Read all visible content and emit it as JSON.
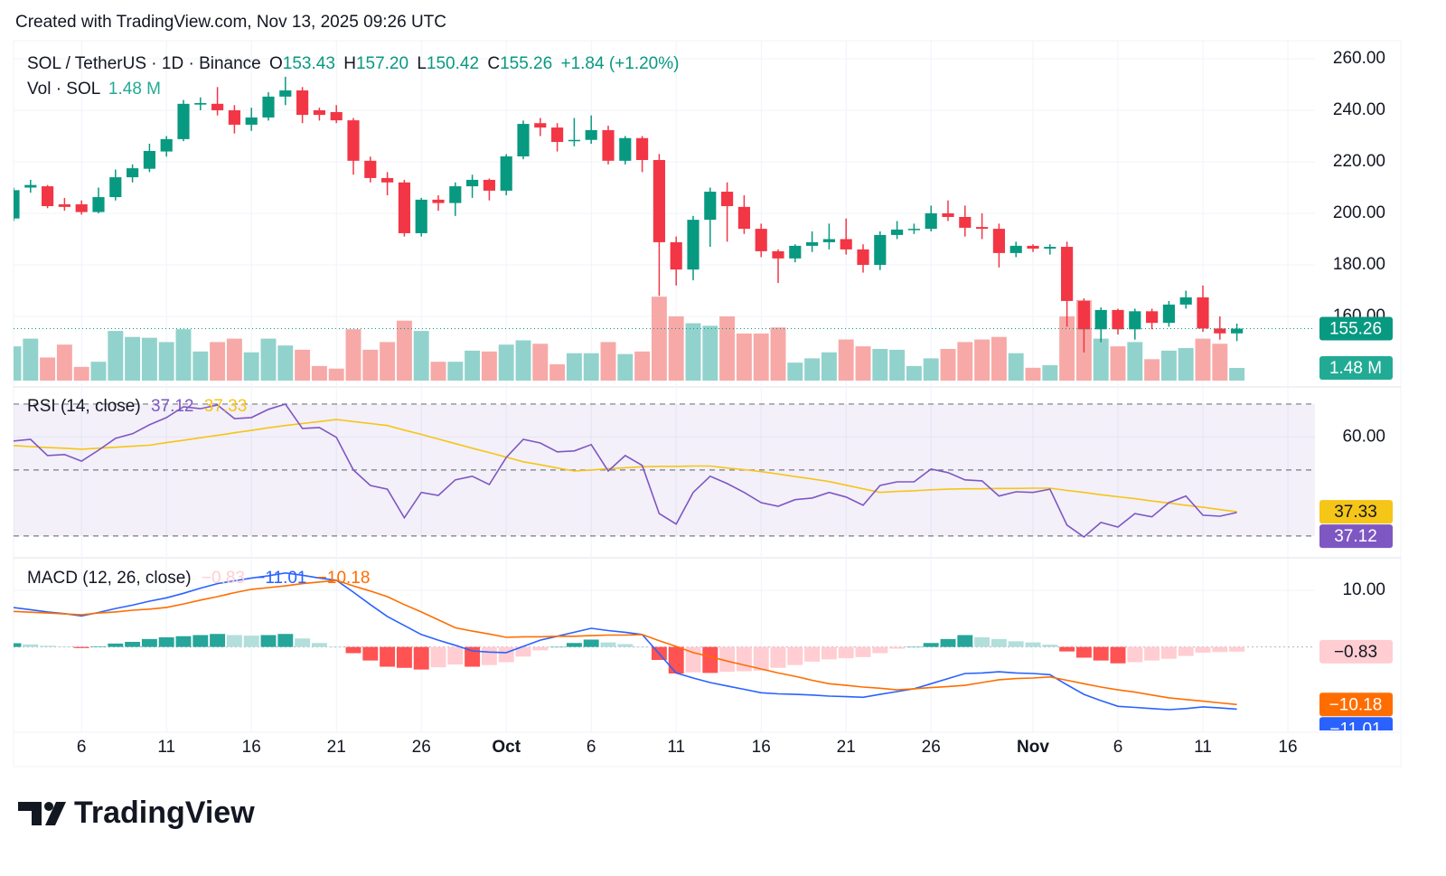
{
  "header": {
    "created": "Created with TradingView.com, Nov 13, 2025 09:26 UTC",
    "logo": "TradingView"
  },
  "chart_data": [
    {
      "type": "candlestick",
      "title": "SOL / TetherUS · 1D · Binance",
      "legend": {
        "open_label": "O",
        "open": "153.43",
        "high_label": "H",
        "high": "157.20",
        "low_label": "L",
        "low": "150.42",
        "close_label": "C",
        "close": "155.26",
        "change": "+1.84 (+1.20%)",
        "volume_title": "Vol · SOL",
        "volume": "1.48 M"
      },
      "categories": [
        null,
        null,
        null,
        null,
        "6",
        null,
        null,
        null,
        null,
        "11",
        null,
        null,
        null,
        null,
        "16",
        null,
        null,
        null,
        null,
        "21",
        null,
        null,
        null,
        null,
        "26",
        null,
        null,
        null,
        null,
        "Oct",
        null,
        null,
        null,
        null,
        "6",
        null,
        null,
        null,
        null,
        "11",
        null,
        null,
        null,
        null,
        "16",
        null,
        null,
        null,
        null,
        "21",
        null,
        null,
        null,
        null,
        "26",
        null,
        null,
        null,
        null,
        null,
        "Nov",
        null,
        null,
        null,
        null,
        "6",
        null,
        null,
        null,
        null,
        "11",
        null,
        null,
        null,
        null,
        "16"
      ],
      "open": [
        198,
        210,
        210.5,
        203.5,
        203.5,
        200.5,
        206.3,
        214,
        217.3,
        224,
        228.8,
        242.2,
        242.5,
        240,
        234.4,
        237.2,
        245.3,
        247.7,
        240,
        239.3,
        236.1,
        220.4,
        213.7,
        212,
        192.3,
        205.3,
        204,
        210.5,
        213,
        208.8,
        222.1,
        235,
        233.3,
        228,
        228.5,
        232.3,
        220.4,
        229.2,
        220.7,
        188.8,
        178.2,
        197.5,
        208.4,
        202.5,
        194,
        185.3,
        182.5,
        187.4,
        188.8,
        190,
        186,
        180,
        191.6,
        193.7,
        194,
        200,
        198.6,
        194.7,
        194,
        184.6,
        187.4,
        186.3,
        187,
        166,
        155,
        162.5,
        155,
        162,
        157.5,
        164.6,
        167.4,
        155.3,
        153.43,
        null,
        null,
        null
      ],
      "high": [
        210,
        213,
        211,
        206,
        205,
        210,
        217,
        219,
        227,
        230,
        244,
        245,
        249,
        242,
        241,
        247,
        253,
        249,
        241,
        242,
        237,
        222,
        216,
        213,
        206,
        207,
        212,
        215,
        213.5,
        223,
        236,
        237,
        235,
        237,
        238,
        234,
        230,
        230,
        223,
        191,
        199,
        210,
        212,
        207,
        196,
        186,
        188,
        193,
        196,
        198,
        188,
        193,
        197,
        196,
        203,
        205,
        203,
        200,
        196,
        189,
        188,
        188,
        189,
        167,
        163.5,
        163,
        163,
        163,
        166,
        170,
        172,
        160,
        157.2,
        null,
        null,
        null
      ],
      "low": [
        197,
        208,
        202,
        201,
        199.5,
        200,
        205,
        212,
        216,
        222,
        228,
        240,
        238,
        231,
        232,
        236,
        242,
        235,
        236,
        235,
        215,
        212,
        207,
        191,
        191,
        201,
        199,
        206,
        205,
        207,
        221,
        230,
        224,
        226,
        227,
        219,
        219,
        216,
        168,
        172,
        174,
        187,
        189,
        192,
        183,
        173,
        181,
        185,
        186,
        184,
        177,
        178,
        190,
        192,
        193,
        197,
        191,
        190,
        179,
        183,
        185,
        184,
        156,
        146,
        150,
        153,
        151,
        155,
        156,
        163,
        154,
        151,
        150.42,
        null,
        null,
        null
      ],
      "close": [
        209,
        211,
        202.8,
        202.5,
        200.5,
        206.3,
        214,
        217.5,
        224.2,
        228.8,
        242.5,
        242.8,
        240,
        234.4,
        237.2,
        245.3,
        247.7,
        238.2,
        238.2,
        236.1,
        220.4,
        213.7,
        212,
        192.3,
        205.3,
        204,
        210.5,
        213,
        208.8,
        222.1,
        234.7,
        233.3,
        227.7,
        228.5,
        232.3,
        220.4,
        229.2,
        220.7,
        188.8,
        178.2,
        197.5,
        208.4,
        202.8,
        194,
        185.3,
        182.5,
        187.4,
        188.8,
        190,
        186,
        180,
        191.6,
        193.7,
        194,
        200,
        198.6,
        194.4,
        194,
        184.6,
        187.4,
        186.3,
        187,
        166,
        155,
        162.5,
        155,
        162,
        157.5,
        164.6,
        167.4,
        155.3,
        153.43,
        155.26,
        null,
        null,
        null
      ],
      "volume": [
        4.0,
        4.9,
        2.7,
        4.2,
        1.6,
        2.2,
        5.8,
        5.1,
        5.0,
        4.5,
        6.0,
        3.4,
        4.5,
        4.9,
        3.3,
        4.9,
        4.1,
        3.6,
        1.7,
        1.4,
        6.0,
        3.6,
        4.5,
        7.0,
        5.8,
        2.2,
        2.2,
        3.5,
        3.4,
        4.2,
        4.7,
        4.3,
        1.9,
        3.2,
        3.2,
        4.5,
        3.1,
        3.4,
        9.8,
        7.5,
        6.7,
        6.4,
        7.5,
        5.5,
        5.5,
        6.2,
        2.1,
        2.6,
        3.3,
        4.8,
        4.0,
        3.7,
        3.6,
        1.7,
        2.6,
        3.7,
        4.5,
        4.8,
        5.1,
        3.2,
        1.5,
        1.8,
        7.5,
        9.4,
        4.9,
        4.0,
        4.5,
        2.5,
        3.5,
        3.8,
        4.9,
        4.3,
        1.48,
        null,
        null,
        null
      ],
      "colors": {
        "up": "#089981",
        "down": "#f23645",
        "volume_up": "#92d2cc",
        "volume_down": "#f7a9a7",
        "volume_tag": "#22ab94"
      },
      "ylim": [
        135.1,
        267.0
      ],
      "volume_ylim": [
        0,
        39.7
      ],
      "yticks": [
        {
          "value": 160,
          "label": "160.00"
        },
        {
          "value": 180,
          "label": "180.00"
        },
        {
          "value": 200,
          "label": "200.00"
        },
        {
          "value": 220,
          "label": "220.00"
        },
        {
          "value": 240,
          "label": "240.00"
        },
        {
          "value": 260,
          "label": "260.00"
        }
      ],
      "grid": true
    },
    {
      "type": "line",
      "title": "RSI (14, close)",
      "series": [
        {
          "color": "#7e57c2",
          "value_label": "37.12",
          "values": [
            58.8,
            59.3,
            54.4,
            54.7,
            52.7,
            56,
            59.6,
            61,
            63.7,
            65.9,
            69.2,
            68.6,
            69.7,
            65.6,
            65.9,
            68.4,
            70,
            62.6,
            62.9,
            59.9,
            50,
            45.3,
            44.2,
            35.5,
            43.2,
            42.3,
            47,
            48.1,
            45.6,
            53.8,
            59.3,
            58.2,
            55.5,
            55.8,
            57.7,
            49.7,
            54.4,
            51.4,
            36.8,
            33.6,
            43.2,
            48.1,
            45.9,
            43.2,
            40.1,
            39,
            41,
            41.5,
            43.2,
            41.8,
            39.3,
            45.3,
            46.4,
            46.4,
            50.3,
            49.2,
            47,
            46.7,
            42.1,
            43.4,
            43.2,
            44.2,
            33.3,
            29.7,
            34.1,
            32.7,
            36.8,
            35.8,
            40.1,
            42.1,
            36.3,
            36,
            37.12,
            null,
            null,
            null
          ]
        },
        {
          "color": "#f5c518",
          "value_label": "37.33",
          "values": [
            57.4,
            57.1,
            56.8,
            56.6,
            56.3,
            56.6,
            56.9,
            57.2,
            57.5,
            58.3,
            59.0,
            59.8,
            60.5,
            61.3,
            62.0,
            62.8,
            63.5,
            64.1,
            64.7,
            65.3,
            64.7,
            64.1,
            63.5,
            62.1,
            60.8,
            59.4,
            58.0,
            56.6,
            55.3,
            53.9,
            52.5,
            51.6,
            50.6,
            49.7,
            50.0,
            50.4,
            50.7,
            51.0,
            51.1,
            51.1,
            51.2,
            51.2,
            50.6,
            50.1,
            49.5,
            48.8,
            48.0,
            47.3,
            46.5,
            45.4,
            44.3,
            43.2,
            43.5,
            43.7,
            44.0,
            44.2,
            44.3,
            44.3,
            44.4,
            44.4,
            44.5,
            44.5,
            43.8,
            43.2,
            42.5,
            41.9,
            41.3,
            40.6,
            40.0,
            39.3,
            38.7,
            38.0,
            37.33,
            null,
            null,
            null
          ]
        }
      ],
      "bands": [
        30,
        50,
        70
      ],
      "band_fill": "#7e57c2",
      "ylim": [
        25.3,
        74.1
      ],
      "yticks": [
        {
          "value": 60,
          "label": "60.00"
        }
      ],
      "grid": true
    },
    {
      "type": "macd",
      "title": "MACD (12, 26, close)",
      "histogram": {
        "value_label": "−0.83",
        "colors": {
          "up_rising": "#26a69a",
          "up_falling": "#b2dfdb",
          "down_falling": "#ff5252",
          "down_rising": "#ffcdd2"
        },
        "values": [
          0.66,
          0.45,
          0.2,
          0.05,
          -0.2,
          0.1,
          0.6,
          0.9,
          1.4,
          1.7,
          1.9,
          2.1,
          2.3,
          2.1,
          2.0,
          2.1,
          2.3,
          1.5,
          0.7,
          0.0,
          -1.1,
          -2.4,
          -3.5,
          -3.7,
          -4.0,
          -3.6,
          -3.1,
          -3.5,
          -3.2,
          -2.7,
          -1.7,
          -0.6,
          0.0,
          0.7,
          1.3,
          0.8,
          0.5,
          0.0,
          -2.3,
          -4.7,
          -4.5,
          -4.6,
          -4.4,
          -4.3,
          -4.2,
          -3.7,
          -3.2,
          -2.6,
          -2.2,
          -2.0,
          -1.8,
          -1.1,
          -0.3,
          0.0,
          0.7,
          1.4,
          2.1,
          1.7,
          1.4,
          1.0,
          0.8,
          0.4,
          -0.8,
          -1.9,
          -2.4,
          -2.9,
          -2.7,
          -2.4,
          -2.1,
          -1.6,
          -1.0,
          -0.9,
          -0.83,
          null,
          null,
          null
        ]
      },
      "series": [
        {
          "color": "#2962ff",
          "value_label": "−11.01",
          "values": [
            6.96,
            6.6,
            6.2,
            5.9,
            5.5,
            6.1,
            6.8,
            7.4,
            8.1,
            8.7,
            9.5,
            10.4,
            11.2,
            11.7,
            12.2,
            12.6,
            13.1,
            12.7,
            12.2,
            11.8,
            9.7,
            7.5,
            5.4,
            3.8,
            2.2,
            1.2,
            0.3,
            -0.7,
            -0.9,
            -1.0,
            0.1,
            1.2,
            1.9,
            2.6,
            3.3,
            2.9,
            2.6,
            2.2,
            -1.2,
            -4.6,
            -5.5,
            -6.3,
            -6.9,
            -7.5,
            -8.1,
            -8.3,
            -8.4,
            -8.5,
            -8.7,
            -8.8,
            -8.9,
            -8.4,
            -7.9,
            -7.4,
            -6.5,
            -5.6,
            -4.7,
            -4.6,
            -4.4,
            -4.6,
            -4.7,
            -4.9,
            -6.7,
            -8.4,
            -9.5,
            -10.5,
            -10.7,
            -10.9,
            -11.1,
            -10.9,
            -10.6,
            -10.8,
            -11.01,
            null,
            null,
            null
          ]
        },
        {
          "color": "#ff6d00",
          "value_label": "−10.18",
          "values": [
            6.3,
            6.15,
            6.0,
            5.85,
            5.7,
            6.0,
            6.2,
            6.5,
            6.7,
            7.0,
            7.6,
            8.3,
            8.9,
            9.6,
            10.2,
            10.5,
            10.8,
            11.2,
            11.5,
            11.8,
            10.8,
            9.9,
            8.9,
            7.5,
            6.2,
            4.8,
            3.4,
            2.8,
            2.3,
            1.7,
            1.8,
            1.8,
            1.9,
            1.9,
            2.0,
            2.1,
            2.1,
            2.2,
            1.1,
            0.1,
            -1.0,
            -1.7,
            -2.5,
            -3.2,
            -3.9,
            -4.6,
            -5.2,
            -5.9,
            -6.5,
            -6.8,
            -7.1,
            -7.3,
            -7.6,
            -7.4,
            -7.2,
            -7.0,
            -6.8,
            -6.3,
            -5.8,
            -5.6,
            -5.5,
            -5.3,
            -5.9,
            -6.5,
            -7.1,
            -7.6,
            -8.0,
            -8.5,
            -9.0,
            -9.3,
            -9.6,
            -9.9,
            -10.18,
            null,
            null,
            null
          ]
        }
      ],
      "ylim": [
        -14.3,
        14.5
      ],
      "yticks": [
        {
          "value": 10,
          "label": "10.00"
        }
      ],
      "grid": true
    }
  ]
}
